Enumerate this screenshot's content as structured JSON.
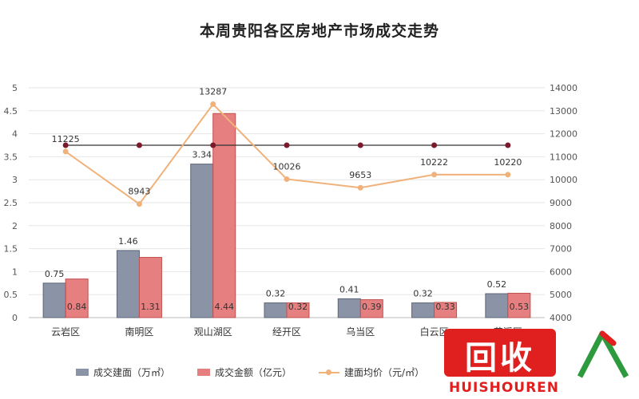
{
  "chart_data": {
    "type": "bar",
    "title": "本周贵阳各区房地产市场成交走势",
    "categories": [
      "云岩区",
      "南明区",
      "观山湖区",
      "经开区",
      "乌当区",
      "白云区",
      "花溪区"
    ],
    "series": [
      {
        "name": "成交建面（万㎡）",
        "type": "bar",
        "axis": "left",
        "color": "#8a94a6",
        "values": [
          0.75,
          1.46,
          3.34,
          0.32,
          0.41,
          0.32,
          0.52
        ]
      },
      {
        "name": "成交金额（亿元）",
        "type": "bar",
        "axis": "left",
        "color": "#e57f80",
        "values": [
          0.84,
          1.31,
          4.44,
          0.32,
          0.39,
          0.33,
          0.53
        ]
      },
      {
        "name": "建面均价（元/㎡）",
        "type": "line",
        "axis": "right",
        "color": "#f0b27a",
        "values": [
          11225,
          8943,
          13287,
          10026,
          9653,
          10222,
          10220
        ]
      }
    ],
    "y_left": {
      "min": 0,
      "max": 5,
      "ticks": [
        0,
        0.5,
        1,
        1.5,
        2,
        2.5,
        3,
        3.5,
        4,
        4.5,
        5
      ],
      "tick_labels": [
        "0",
        "0.5",
        "1",
        "1.5",
        "2",
        "2.5",
        "3",
        "3.5",
        "4",
        "4.5",
        "5"
      ]
    },
    "y_right": {
      "min": 4000,
      "max": 14000,
      "ticks": [
        4000,
        5000,
        6000,
        7000,
        8000,
        9000,
        10000,
        11000,
        12000,
        13000,
        14000
      ],
      "tick_labels": [
        "4000",
        "5000",
        "6000",
        "7000",
        "8000",
        "9000",
        "10000",
        "11000",
        "12000",
        "13000",
        "14000"
      ]
    },
    "reference_line": {
      "value": 3.75,
      "axis": "left",
      "color": "#333333"
    },
    "bar_labels_left": [
      "0.75",
      "1.46",
      "3.34",
      "0.32",
      "0.41",
      "0.32",
      "0.52"
    ],
    "bar_labels_right": [
      "0.84",
      "1.31",
      "4.44",
      "0.32",
      "0.39",
      "0.33",
      "0.53"
    ],
    "line_labels": [
      "11225",
      "8943",
      "13287",
      "10026",
      "9653",
      "10222",
      "10220"
    ],
    "grid": true,
    "legend": "bottom"
  },
  "legend": {
    "area_label": "成交建面（万㎡）",
    "amount_label": "成交金额（亿元）",
    "price_label": "建面均价（元/㎡）"
  },
  "watermark": {
    "main": "回收",
    "sub": "HUISHOUREN"
  }
}
